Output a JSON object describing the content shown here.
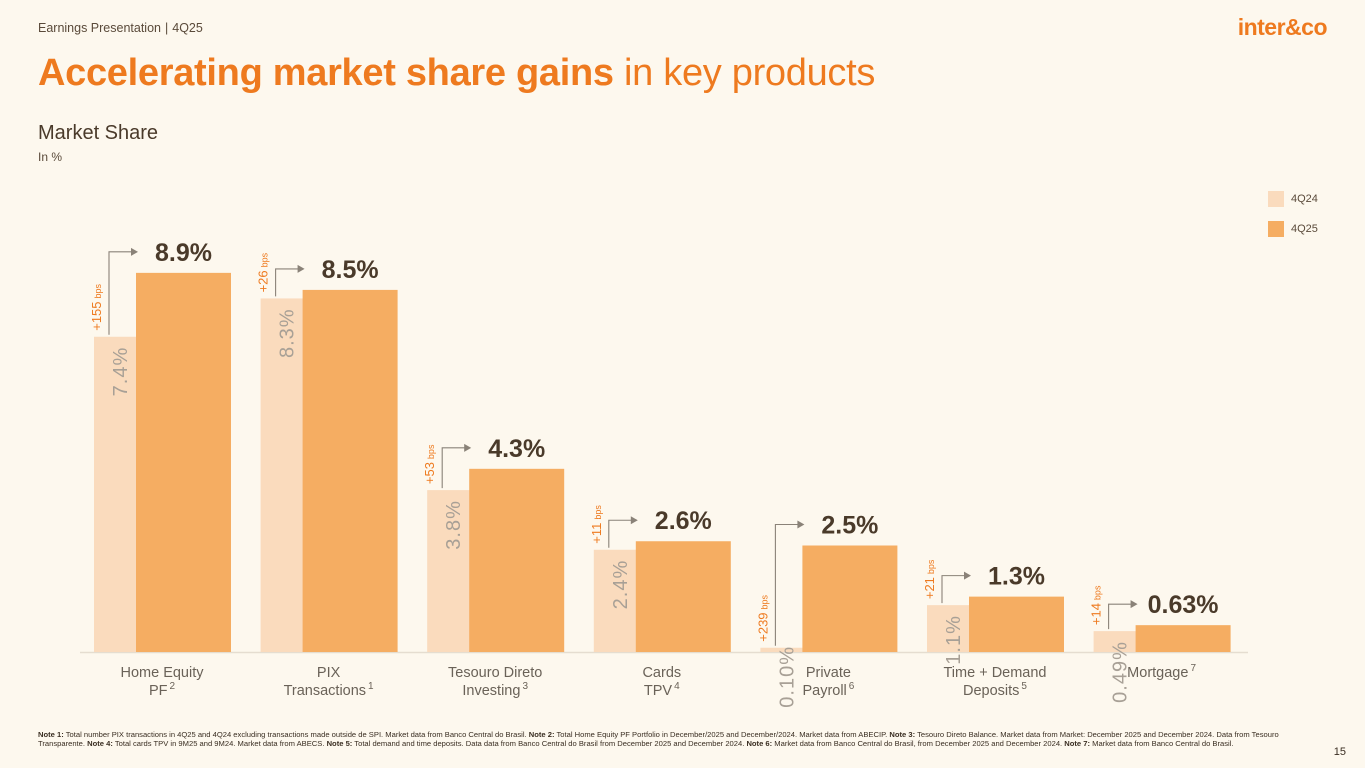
{
  "header": {
    "presentation": "Earnings Presentation",
    "separator": "|",
    "period": "4Q25"
  },
  "logo": {
    "text": "inter&co"
  },
  "title": {
    "bold": "Accelerating market share gains",
    "light": " in key products"
  },
  "section": {
    "title": "Market Share",
    "unit": "In %"
  },
  "colors": {
    "accent": "#ee7a1f",
    "q24": "#fadbbd",
    "q25": "#f5ad62",
    "text": "#4a3a2a",
    "axis": "#e5ddd0"
  },
  "chart_data": {
    "type": "bar",
    "title": "Market Share",
    "ylabel": "In %",
    "ylim": [
      0,
      10
    ],
    "legend": [
      "4Q24",
      "4Q25"
    ],
    "legend_position": "top-right",
    "categories": [
      {
        "line1": "Home Equity",
        "line2": "PF",
        "note": "2"
      },
      {
        "line1": "PIX",
        "line2": "Transactions",
        "note": "1"
      },
      {
        "line1": "Tesouro Direto",
        "line2": "Investing",
        "note": "3"
      },
      {
        "line1": "Cards",
        "line2": "TPV",
        "note": "4"
      },
      {
        "line1": "Private",
        "line2": "Payroll",
        "note": "6"
      },
      {
        "line1": "Time + Demand",
        "line2": "Deposits",
        "note": "5"
      },
      {
        "line1": "Mortgage",
        "line2": "",
        "note": "7"
      }
    ],
    "series": [
      {
        "name": "4Q24",
        "values": [
          7.4,
          8.3,
          3.8,
          2.4,
          0.1,
          1.1,
          0.49
        ],
        "labels": [
          "7.4%",
          "8.3%",
          "3.8%",
          "2.4%",
          "0.10%",
          "1.1%",
          "0.49%"
        ]
      },
      {
        "name": "4Q25",
        "values": [
          8.9,
          8.5,
          4.3,
          2.6,
          2.5,
          1.3,
          0.63
        ],
        "labels": [
          "8.9%",
          "8.5%",
          "4.3%",
          "2.6%",
          "2.5%",
          "1.3%",
          "0.63%"
        ]
      }
    ],
    "deltas": [
      {
        "value": "+155",
        "unit": "bps"
      },
      {
        "value": "+26",
        "unit": "bps"
      },
      {
        "value": "+53",
        "unit": "bps"
      },
      {
        "value": "+11",
        "unit": "bps"
      },
      {
        "value": "+239",
        "unit": "bps"
      },
      {
        "value": "+21",
        "unit": "bps"
      },
      {
        "value": "+14",
        "unit": "bps"
      }
    ]
  },
  "notes": [
    {
      "label": "Note 1:",
      "text": " Total number PIX transactions in 4Q25 and 4Q24 excluding transactions made outside de SPI. Market data from Banco Central do Brasil. "
    },
    {
      "label": "Note 2:",
      "text": " Total Home Equity PF Portfolio in December/2025 and December/2024. Market data from ABECIP. "
    },
    {
      "label": "Note 3:",
      "text": " Tesouro Direto Balance. Market data from Market: December 2025 and December 2024. Data from Tesouro Transparente. "
    },
    {
      "label": "Note 4:",
      "text": " Total cards TPV in 9M25 and 9M24. Market data from ABECS.  "
    },
    {
      "label": "Note 5:",
      "text": " Total demand and time deposits. Data data from Banco Central do Brasil from December 2025 and December 2024. "
    },
    {
      "label": "Note 6:",
      "text": " Market data from Banco Central do Brasil, from December 2025 and December 2024. "
    },
    {
      "label": "Note 7:",
      "text": " Market data from Banco Central do Brasil."
    }
  ],
  "page_number": "15"
}
